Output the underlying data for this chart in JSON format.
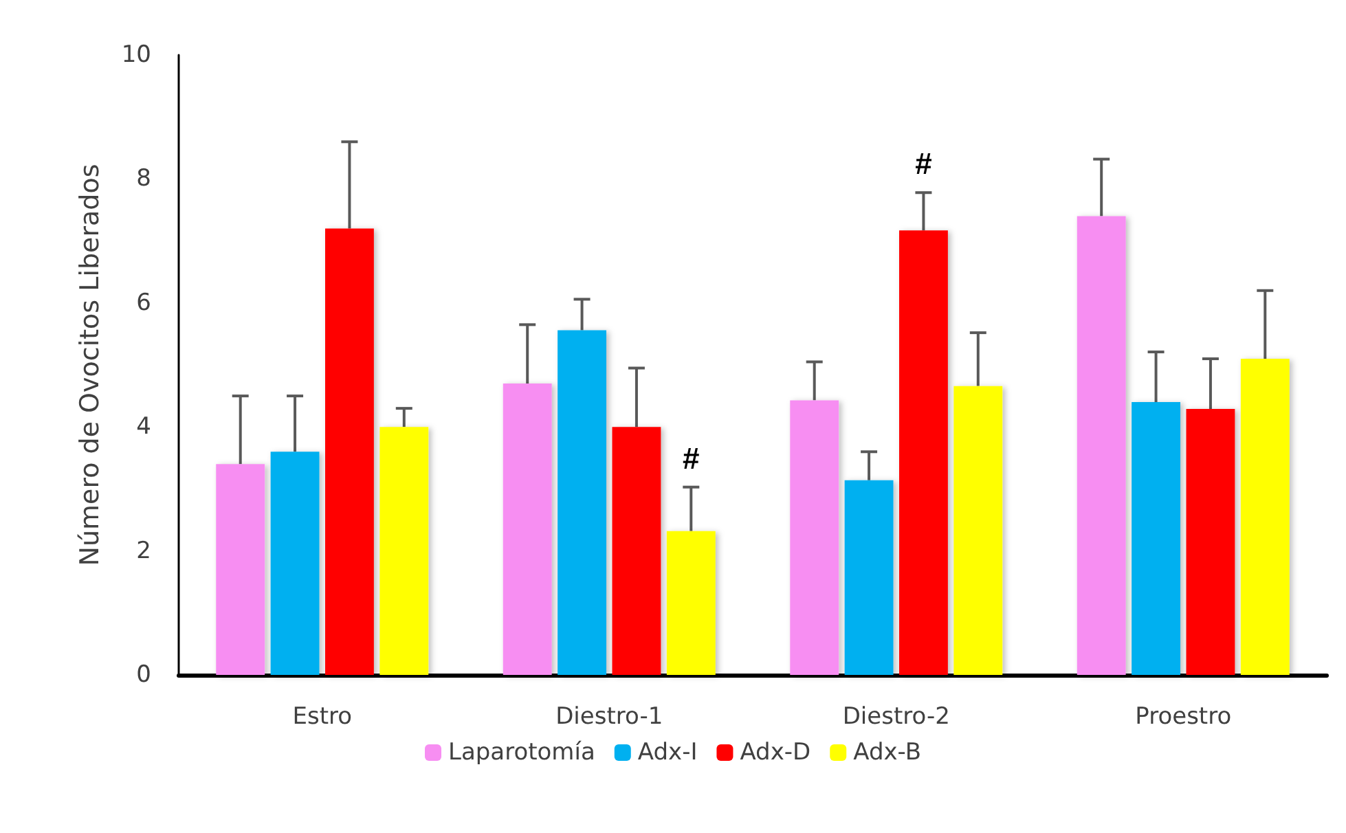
{
  "chart_data": {
    "type": "bar",
    "ylabel": "Número de Ovocitos Liberados",
    "categories": [
      "Estro",
      "Diestro-1",
      "Diestro-2",
      "Proestro"
    ],
    "series": [
      {
        "name": "Laparotomía",
        "color": "#f78ef2",
        "values": [
          3.4,
          4.7,
          4.43,
          7.4
        ],
        "errors": [
          [
            3.4,
            4.5
          ],
          [
            4.7,
            5.65
          ],
          [
            4.43,
            5.05
          ],
          [
            7.4,
            8.32
          ]
        ]
      },
      {
        "name": "Adx-I",
        "color": "#00b0f0",
        "values": [
          3.6,
          5.56,
          3.14,
          4.4
        ],
        "errors": [
          [
            3.6,
            4.5
          ],
          [
            5.56,
            6.06
          ],
          [
            3.14,
            3.6
          ],
          [
            4.4,
            5.21
          ]
        ]
      },
      {
        "name": "Adx-D",
        "color": "#ff0000",
        "values": [
          7.2,
          4.0,
          7.17,
          4.29
        ],
        "errors": [
          [
            7.2,
            8.6
          ],
          [
            4.0,
            4.95
          ],
          [
            7.17,
            7.78
          ],
          [
            4.29,
            5.1
          ]
        ]
      },
      {
        "name": "Adx-B",
        "color": "#ffff00",
        "values": [
          4.0,
          2.32,
          4.66,
          5.1
        ],
        "errors": [
          [
            4.0,
            4.3
          ],
          [
            2.32,
            3.03
          ],
          [
            4.66,
            5.52
          ],
          [
            5.1,
            6.2
          ]
        ]
      }
    ],
    "annotations": [
      {
        "text": "#",
        "x": "Diestro-1",
        "y": 3.03
      },
      {
        "text": "#",
        "x": "Diestro-2",
        "y": 7.17
      }
    ],
    "ylim": [
      0,
      10
    ],
    "yticks": [
      0,
      2,
      4,
      6,
      8,
      10
    ],
    "grid": false,
    "legend": "bottom"
  }
}
